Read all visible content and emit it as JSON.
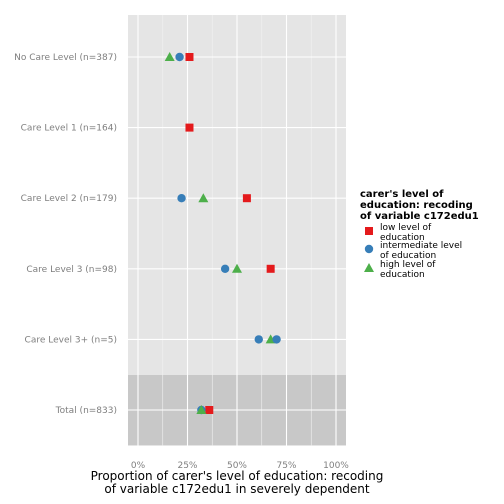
{
  "chart_data": {
    "type": "scatter",
    "title": "",
    "xlabel_lines": [
      "Proportion of carer's level of education: recoding",
      "of variable c172edu1 in severely dependent"
    ],
    "ylabel": "",
    "xlim": [
      0,
      1
    ],
    "x_ticks": [
      0,
      0.25,
      0.5,
      0.75,
      1
    ],
    "x_tick_labels": [
      "0%",
      "25%",
      "50%",
      "75%",
      "100%"
    ],
    "categories": [
      "No Care Level (n=387)",
      "Care Level 1 (n=164)",
      "Care Level 2 (n=179)",
      "Care Level 3 (n=98)",
      "Care Level 3+ (n=5)",
      "Total (n=833)"
    ],
    "highlighted_category": "Total (n=833)",
    "grid": true,
    "legend": {
      "title_lines": [
        "carer's level of",
        "education: recoding",
        "of variable c172edu1"
      ],
      "position": "right"
    },
    "series": [
      {
        "name_lines": [
          "low level of",
          "education"
        ],
        "shape": "square",
        "color": "#e41a1c",
        "values": [
          0.26,
          0.26,
          0.55,
          0.67,
          null,
          0.36
        ]
      },
      {
        "name_lines": [
          "intermediate level",
          "of education"
        ],
        "shape": "circle",
        "color": "#377eb8",
        "values": [
          0.21,
          null,
          0.22,
          0.44,
          0.61,
          0.32
        ]
      },
      {
        "name_lines": [
          "high level of",
          "education"
        ],
        "shape": "triangle",
        "color": "#4daf4a",
        "values": [
          0.16,
          null,
          0.33,
          0.5,
          0.67,
          0.32
        ]
      }
    ],
    "extra_points": [
      {
        "category": "Care Level 3+ (n=5)",
        "series_index": 1,
        "value": 0.7
      }
    ]
  }
}
